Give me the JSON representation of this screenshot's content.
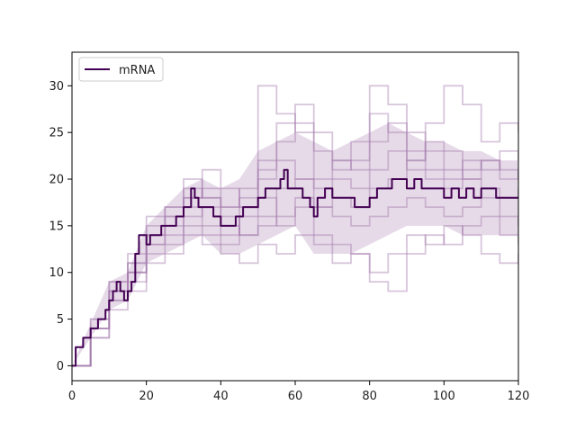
{
  "chart_data": {
    "type": "line",
    "title": "",
    "xlabel": "",
    "ylabel": "",
    "xlim": [
      0,
      120
    ],
    "ylim": [
      -1.6,
      33.6
    ],
    "x_ticks": [
      0,
      20,
      40,
      60,
      80,
      100,
      120
    ],
    "y_ticks": [
      0,
      5,
      10,
      15,
      20,
      25,
      30
    ],
    "grid": false,
    "legend_position": "top-left",
    "colors": {
      "main": "#440154",
      "band": "#d2bcd6",
      "runs": "#a67fb0"
    },
    "series": [
      {
        "name": "mRNA",
        "x": [
          0,
          1,
          3,
          5,
          7,
          9,
          10,
          11,
          12,
          13,
          14,
          15,
          16,
          17,
          18,
          20,
          21,
          22,
          24,
          26,
          28,
          30,
          32,
          33,
          34,
          36,
          38,
          40,
          42,
          44,
          46,
          48,
          50,
          52,
          54,
          56,
          57,
          58,
          60,
          62,
          64,
          65,
          66,
          68,
          70,
          72,
          74,
          76,
          78,
          80,
          82,
          84,
          86,
          88,
          90,
          92,
          94,
          96,
          98,
          100,
          102,
          104,
          106,
          108,
          110,
          112,
          114,
          116,
          118,
          120
        ],
        "y": [
          0,
          2,
          3,
          4,
          5,
          6,
          7,
          8,
          9,
          8,
          7,
          8,
          9,
          12,
          14,
          13,
          14,
          14,
          15,
          15,
          16,
          17,
          19,
          18,
          17,
          17,
          16,
          15,
          15,
          16,
          17,
          17,
          18,
          19,
          19,
          20,
          21,
          19,
          19,
          18,
          17,
          16,
          18,
          19,
          18,
          18,
          18,
          17,
          17,
          18,
          19,
          19,
          20,
          20,
          19,
          20,
          19,
          19,
          19,
          18,
          19,
          18,
          19,
          18,
          19,
          19,
          18,
          18,
          18,
          18
        ]
      }
    ],
    "band": {
      "x": [
        0,
        10,
        15,
        20,
        25,
        30,
        35,
        40,
        45,
        50,
        55,
        60,
        65,
        70,
        75,
        80,
        85,
        90,
        95,
        100,
        105,
        110,
        115,
        120
      ],
      "low": [
        0,
        6,
        7,
        11,
        12,
        13,
        14,
        12,
        12,
        13,
        14,
        15,
        12,
        12,
        12,
        13,
        14,
        15,
        15,
        15,
        14,
        14,
        14,
        14
      ],
      "high": [
        0,
        9,
        10,
        15,
        17,
        19,
        20,
        19,
        20,
        23,
        24,
        25,
        24,
        23,
        24,
        25,
        26,
        25,
        24,
        24,
        23,
        23,
        22,
        22
      ]
    },
    "runs": [
      {
        "x": [
          0,
          5,
          10,
          15,
          20,
          25,
          30,
          35,
          40,
          45,
          50,
          55,
          60,
          65,
          70,
          75,
          80,
          85,
          90,
          95,
          100,
          105,
          110,
          115,
          120
        ],
        "y": [
          0,
          4,
          8,
          10,
          14,
          15,
          17,
          15,
          14,
          17,
          22,
          24,
          26,
          20,
          22,
          21,
          30,
          28,
          22,
          26,
          30,
          28,
          24,
          26,
          25
        ]
      },
      {
        "x": [
          0,
          5,
          10,
          15,
          20,
          25,
          30,
          35,
          40,
          45,
          50,
          55,
          60,
          65,
          70,
          75,
          80,
          85,
          90,
          95,
          100,
          105,
          110,
          115,
          120
        ],
        "y": [
          0,
          5,
          9,
          12,
          16,
          17,
          19,
          18,
          16,
          14,
          16,
          19,
          20,
          17,
          20,
          19,
          21,
          23,
          21,
          20,
          19,
          20,
          22,
          21,
          20
        ]
      },
      {
        "x": [
          0,
          5,
          10,
          15,
          20,
          25,
          30,
          35,
          40,
          45,
          50,
          55,
          60,
          65,
          70,
          75,
          80,
          85,
          90,
          95,
          100,
          105,
          110,
          115,
          120
        ],
        "y": [
          0,
          3,
          6,
          8,
          11,
          12,
          14,
          13,
          12,
          11,
          13,
          12,
          14,
          13,
          11,
          12,
          10,
          12,
          14,
          13,
          15,
          14,
          12,
          11,
          12
        ]
      },
      {
        "x": [
          0,
          5,
          10,
          15,
          20,
          25,
          30,
          35,
          40,
          45,
          50,
          55,
          60,
          65,
          70,
          75,
          80,
          85,
          90,
          95,
          100,
          105,
          110,
          115,
          120
        ],
        "y": [
          0,
          4,
          7,
          11,
          13,
          16,
          18,
          21,
          19,
          17,
          30,
          27,
          25,
          23,
          21,
          22,
          24,
          26,
          25,
          23,
          21,
          20,
          19,
          18,
          19
        ]
      },
      {
        "x": [
          0,
          5,
          10,
          15,
          20,
          25,
          30,
          35,
          40,
          45,
          50,
          55,
          60,
          65,
          70,
          75,
          80,
          85,
          90,
          95,
          100,
          105,
          110,
          115,
          120
        ],
        "y": [
          0,
          4,
          8,
          9,
          12,
          13,
          15,
          14,
          13,
          16,
          18,
          15,
          17,
          14,
          13,
          12,
          9,
          8,
          12,
          14,
          13,
          15,
          16,
          14,
          13
        ]
      },
      {
        "x": [
          0,
          5,
          10,
          15,
          20,
          25,
          30,
          35,
          40,
          45,
          50,
          55,
          60,
          65,
          70,
          75,
          80,
          85,
          90,
          95,
          100,
          105,
          110,
          115,
          120
        ],
        "y": [
          0,
          3,
          7,
          10,
          15,
          17,
          20,
          18,
          17,
          19,
          21,
          22,
          20,
          19,
          18,
          17,
          19,
          20,
          22,
          24,
          23,
          21,
          22,
          20,
          21
        ]
      },
      {
        "x": [
          0,
          5,
          10,
          15,
          20,
          25,
          30,
          35,
          40,
          45,
          50,
          55,
          60,
          65,
          70,
          75,
          80,
          85,
          90,
          95,
          100,
          105,
          110,
          115,
          120
        ],
        "y": [
          0,
          4,
          8,
          10,
          13,
          14,
          16,
          17,
          15,
          14,
          15,
          16,
          18,
          17,
          16,
          15,
          16,
          17,
          18,
          17,
          16,
          17,
          18,
          16,
          15
        ]
      },
      {
        "x": [
          0,
          5,
          10,
          15,
          20,
          25,
          30,
          35,
          40,
          45,
          50,
          55,
          60,
          65,
          70,
          75,
          80,
          85,
          90,
          95,
          100,
          105,
          110,
          115,
          120
        ],
        "y": [
          0,
          5,
          9,
          11,
          14,
          16,
          18,
          19,
          17,
          18,
          20,
          26,
          28,
          25,
          22,
          24,
          27,
          25,
          23,
          21,
          20,
          22,
          21,
          23,
          22
        ]
      }
    ]
  },
  "legend": {
    "label": "mRNA"
  }
}
